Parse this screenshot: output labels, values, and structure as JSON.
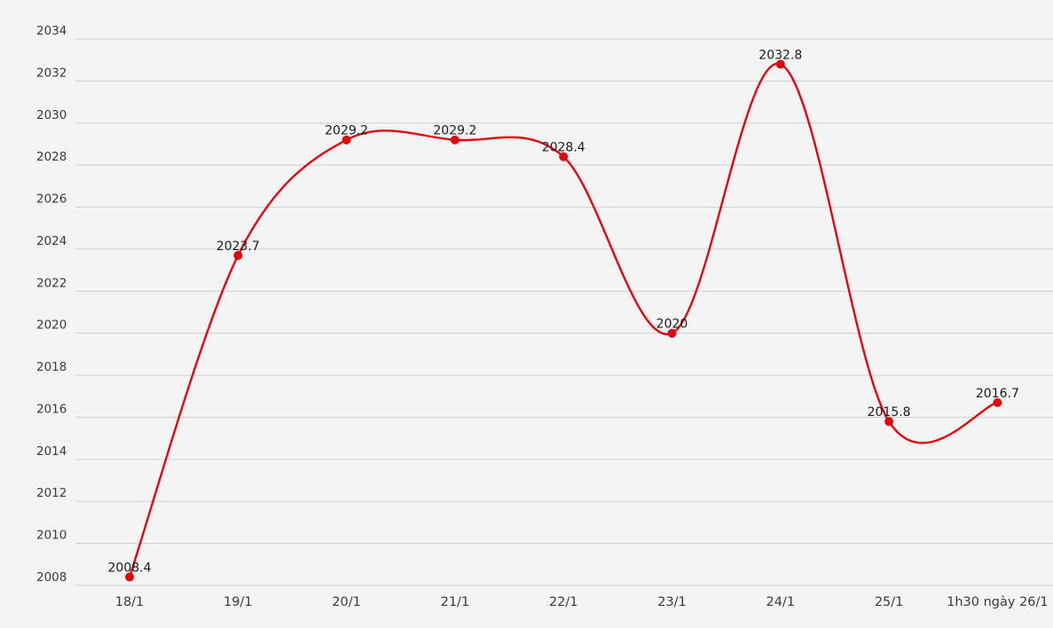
{
  "chart_data": {
    "type": "line",
    "title": "",
    "xlabel": "",
    "ylabel": "",
    "categories": [
      "18/1",
      "19/1",
      "20/1",
      "21/1",
      "22/1",
      "23/1",
      "24/1",
      "25/1",
      "1h30 ngày 26/1"
    ],
    "series": [
      {
        "values": [
          2008.4,
          2023.7,
          2029.2,
          2029.2,
          2028.4,
          2020,
          2032.8,
          2015.8,
          2016.7
        ],
        "labels": [
          "2008.4",
          "2023.7",
          "2029.2",
          "2029.2",
          "2028.4",
          "2020",
          "2032.8",
          "2015.8",
          "2016.7"
        ],
        "color": "#e0070f"
      }
    ],
    "ylim": [
      2008,
      2034
    ],
    "yticks": [
      "2008",
      "2010",
      "2012",
      "2014",
      "2016",
      "2018",
      "2020",
      "2022",
      "2024",
      "2026",
      "2028",
      "2030",
      "2032",
      "2034"
    ],
    "grid": true,
    "legend": "none"
  }
}
